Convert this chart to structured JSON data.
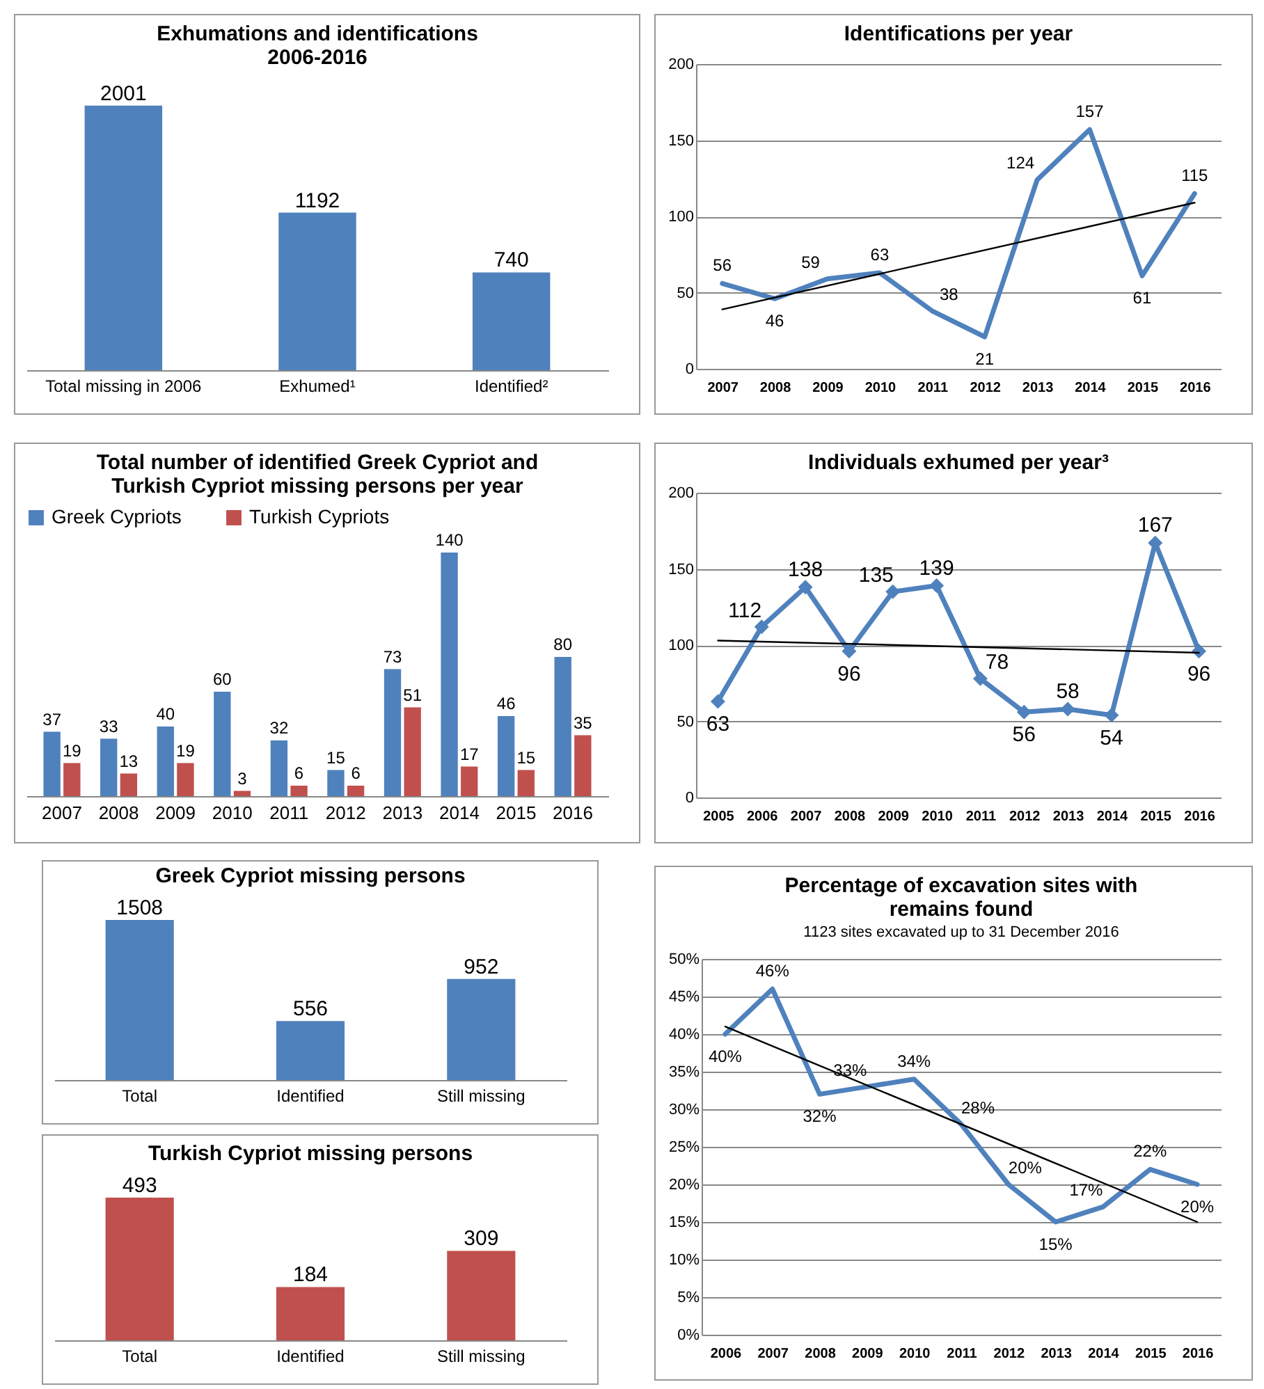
{
  "chart_data": [
    {
      "type": "bar",
      "title": "Exhumations and identifications\n2006-2016",
      "categories": [
        "Total missing in 2006",
        "Exhumed¹",
        "Identified²"
      ],
      "values": [
        2001,
        1192,
        740
      ],
      "color": "#4f81bd",
      "data_labels": true
    },
    {
      "type": "line",
      "title": "Identifications per year",
      "x": [
        2007,
        2008,
        2009,
        2010,
        2011,
        2012,
        2013,
        2014,
        2015,
        2016
      ],
      "xlim": [
        2006.5,
        2016.5
      ],
      "xticks": [
        2007,
        2008,
        2009,
        2010,
        2011,
        2012,
        2013,
        2014,
        2015,
        2016
      ],
      "ylim": [
        0,
        200
      ],
      "yticks": [
        0,
        50,
        100,
        150,
        200
      ],
      "grid": "y",
      "series": [
        {
          "color": "#4f81bd",
          "values": [
            56,
            46,
            59,
            63,
            38,
            21,
            124,
            157,
            61,
            115
          ],
          "value_labels": [
            "56",
            "46",
            "59",
            "63",
            "38",
            "21",
            "124",
            "157",
            "61",
            "115"
          ]
        },
        {
          "color": "#000000",
          "x": [
            2007,
            2016
          ],
          "values": [
            39,
            109
          ]
        }
      ]
    },
    {
      "type": "bar",
      "title": "Total number of identified Greek Cypriot and\nTurkish Cypriot missing persons per year",
      "categories": [
        "2007",
        "2008",
        "2009",
        "2010",
        "2011",
        "2012",
        "2013",
        "2014",
        "2015",
        "2016"
      ],
      "legend": "top",
      "data_labels": true,
      "series": [
        {
          "name": "Greek Cypriots",
          "color": "#4f81bd",
          "values": [
            37,
            33,
            40,
            60,
            32,
            15,
            73,
            140,
            46,
            80
          ]
        },
        {
          "name": "Turkish Cypriots",
          "color": "#c0504d",
          "values": [
            19,
            13,
            19,
            3,
            6,
            6,
            51,
            17,
            15,
            35
          ]
        }
      ]
    },
    {
      "type": "line",
      "title": "Individuals exhumed per year³",
      "x": [
        2005,
        2006,
        2007,
        2008,
        2009,
        2010,
        2011,
        2012,
        2013,
        2014,
        2015,
        2016
      ],
      "xlim": [
        2004.5,
        2016.5
      ],
      "xticks": [
        2005,
        2006,
        2007,
        2008,
        2009,
        2010,
        2011,
        2012,
        2013,
        2014,
        2015,
        2016
      ],
      "ylim": [
        0,
        200
      ],
      "yticks": [
        0,
        50,
        100,
        150,
        200
      ],
      "grid": "y",
      "series": [
        {
          "color": "#4f81bd",
          "marker": "diamond",
          "values": [
            63,
            112,
            138,
            96,
            135,
            139,
            78,
            56,
            58,
            54,
            167,
            96
          ],
          "value_labels": [
            "63",
            "112",
            "138",
            "96",
            "135",
            "139",
            "78",
            "56",
            "58",
            "54",
            "167",
            "96"
          ]
        },
        {
          "color": "#000000",
          "x": [
            2005,
            2016
          ],
          "values": [
            103,
            95
          ]
        }
      ]
    },
    {
      "type": "bar",
      "title": "Greek Cypriot missing persons",
      "categories": [
        "Total",
        "Identified",
        "Still missing"
      ],
      "values": [
        1508,
        556,
        952
      ],
      "color": "#4f81bd",
      "data_labels": true
    },
    {
      "type": "bar",
      "title": "Turkish Cypriot missing persons",
      "categories": [
        "Total",
        "Identified",
        "Still missing"
      ],
      "values": [
        493,
        184,
        309
      ],
      "color": "#c0504d",
      "data_labels": true
    },
    {
      "type": "line",
      "title": "Percentage of excavation sites with\nremains found",
      "subtitle": "1123 sites excavated up to 31 December 2016",
      "x": [
        2006,
        2007,
        2008,
        2009,
        2010,
        2011,
        2012,
        2013,
        2014,
        2015,
        2016
      ],
      "xlim": [
        2005.5,
        2016.5
      ],
      "xticks": [
        2006,
        2007,
        2008,
        2009,
        2010,
        2011,
        2012,
        2013,
        2014,
        2015,
        2016
      ],
      "ylim": [
        0,
        50
      ],
      "yticks": [
        {
          "value": 0,
          "label": "0%"
        },
        {
          "value": 5,
          "label": "5%"
        },
        {
          "value": 10,
          "label": "10%"
        },
        {
          "value": 15,
          "label": "15%"
        },
        {
          "value": 20,
          "label": "20%"
        },
        {
          "value": 25,
          "label": "25%"
        },
        {
          "value": 30,
          "label": "30%"
        },
        {
          "value": 35,
          "label": "35%"
        },
        {
          "value": 40,
          "label": "40%"
        },
        {
          "value": 45,
          "label": "45%"
        },
        {
          "value": 50,
          "label": "50%"
        }
      ],
      "grid": "y",
      "series": [
        {
          "color": "#4f81bd",
          "values": [
            40,
            46,
            32,
            33,
            34,
            28,
            20,
            15,
            17,
            22,
            20
          ],
          "value_labels": [
            "40%",
            "46%",
            "32%",
            "33%",
            "34%",
            "28%",
            "20%",
            "15%",
            "17%",
            "22%",
            "20%"
          ]
        },
        {
          "color": "#000000",
          "x": [
            2006,
            2016
          ],
          "values": [
            41,
            15
          ]
        }
      ]
    }
  ]
}
